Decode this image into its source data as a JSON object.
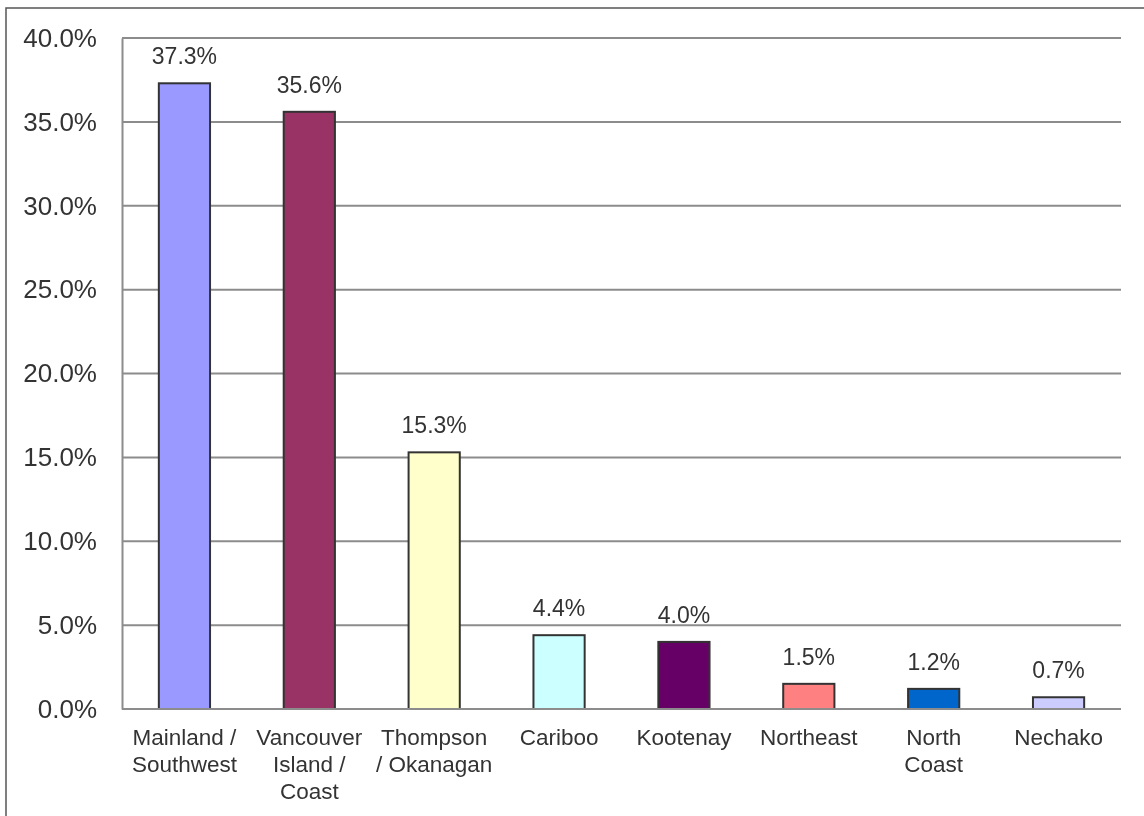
{
  "chart_data": {
    "type": "bar",
    "categories": [
      "Mainland / Southwest",
      "Vancouver Island / Coast",
      "Thompson / Okanagan",
      "Cariboo",
      "Kootenay",
      "Northeast",
      "North Coast",
      "Nechako"
    ],
    "values": [
      37.3,
      35.6,
      15.3,
      4.4,
      4.0,
      1.5,
      1.2,
      0.7
    ],
    "colors": [
      "#9999ff",
      "#993366",
      "#ffffcc",
      "#ccffff",
      "#660066",
      "#ff8080",
      "#0066cc",
      "#ccccff"
    ],
    "value_labels": [
      "37.3%",
      "35.6%",
      "15.3%",
      "4.4%",
      "4.0%",
      "1.5%",
      "1.2%",
      "0.7%"
    ],
    "ylim": [
      0,
      40
    ],
    "yticks": [
      {
        "value": 0,
        "label": "0.0%"
      },
      {
        "value": 5,
        "label": "5.0%"
      },
      {
        "value": 10,
        "label": "10.0%"
      },
      {
        "value": 15,
        "label": "15.0%"
      },
      {
        "value": 20,
        "label": "20.0%"
      },
      {
        "value": 25,
        "label": "25.0%"
      },
      {
        "value": 30,
        "label": "30.0%"
      },
      {
        "value": 35,
        "label": "35.0%"
      },
      {
        "value": 40,
        "label": "40.0%"
      }
    ],
    "grid": "y"
  }
}
